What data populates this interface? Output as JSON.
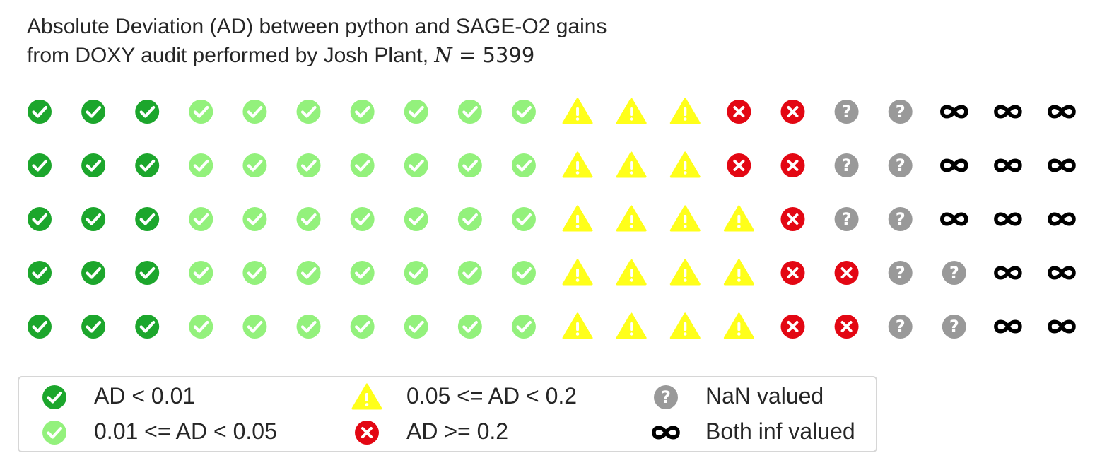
{
  "title": {
    "line1": "Absolute Deviation (AD) between python and SAGE-O2 gains",
    "line2_prefix": "from DOXY audit performed by Josh Plant, ",
    "n_symbol": "N",
    "n_equals": " = ",
    "n_value": "5399"
  },
  "chart_data": {
    "type": "waffle",
    "rows": 5,
    "columns": 20,
    "total_n": 5399,
    "categories": [
      {
        "label": "AD < 0.01",
        "icon": "check-circle-icon",
        "color": "#1ca62c"
      },
      {
        "label": "0.01 <= AD < 0.05",
        "icon": "check-circle-icon",
        "color": "#93f17c"
      },
      {
        "label": "0.05 <= AD < 0.2",
        "icon": "warning-triangle-icon",
        "color": "#ffff1a"
      },
      {
        "label": "AD >= 0.2",
        "icon": "x-circle-icon",
        "color": "#e30713"
      },
      {
        "label": "NaN valued",
        "icon": "question-circle-icon",
        "color": "#999999"
      },
      {
        "label": "Both inf valued",
        "icon": "infinity-icon",
        "color": "#000000"
      }
    ],
    "cells_per_row": [
      [
        3,
        7,
        3,
        2,
        2,
        3
      ],
      [
        3,
        7,
        3,
        2,
        2,
        3
      ],
      [
        3,
        7,
        4,
        1,
        2,
        3
      ],
      [
        3,
        7,
        4,
        2,
        2,
        2
      ],
      [
        3,
        7,
        4,
        2,
        2,
        2
      ]
    ],
    "legend_position": "bottom-left"
  }
}
